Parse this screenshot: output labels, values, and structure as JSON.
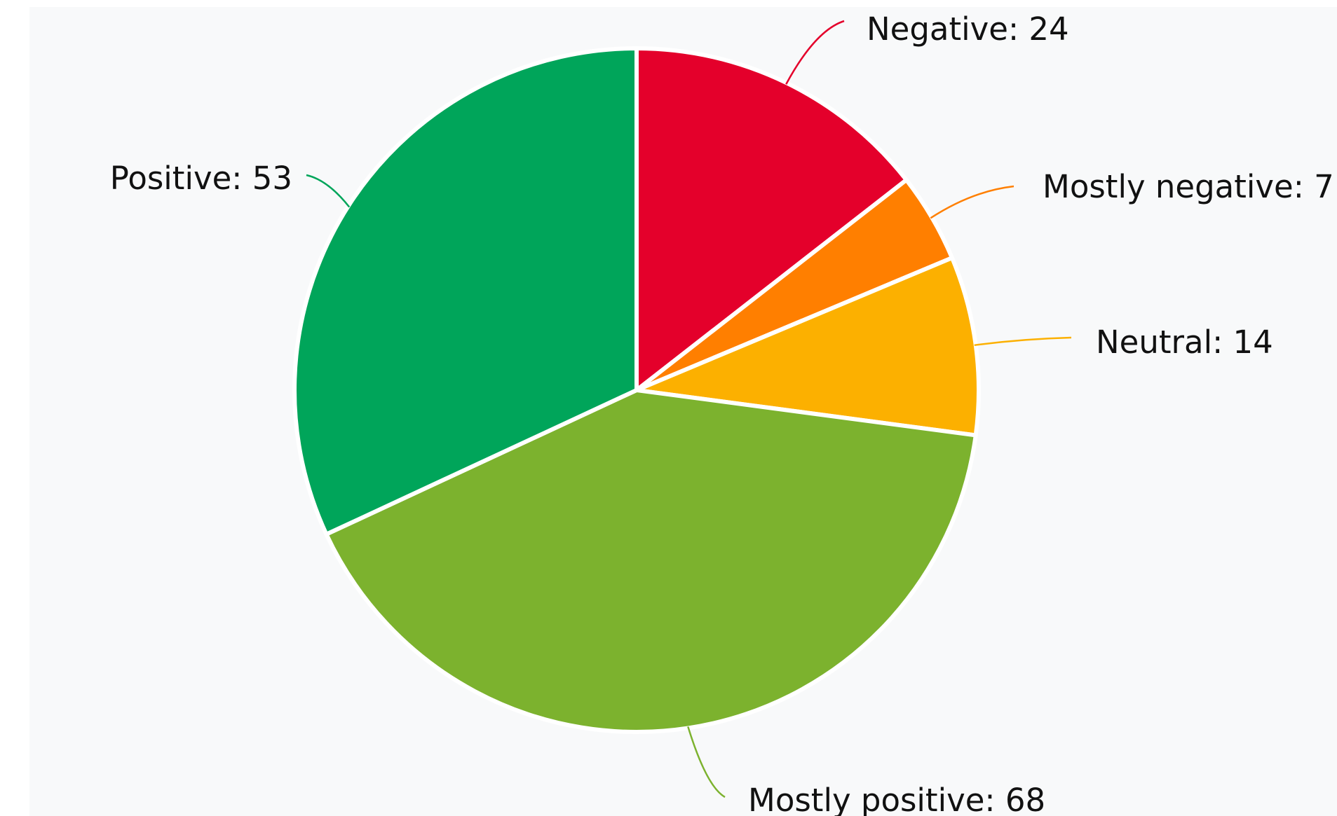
{
  "chart_data": {
    "type": "pie",
    "slices": [
      {
        "name": "Negative",
        "value": 24,
        "color": "#e4002b",
        "label": "Negative: 24"
      },
      {
        "name": "Mostly negative",
        "value": 7,
        "color": "#ff7f00",
        "label": "Mostly negative: 7"
      },
      {
        "name": "Neutral",
        "value": 14,
        "color": "#fcb000",
        "label": "Neutral: 14"
      },
      {
        "name": "Mostly positive",
        "value": 68,
        "color": "#7cb22e",
        "label": "Mostly positive: 68"
      },
      {
        "name": "Positive",
        "value": 53,
        "color": "#00a55a",
        "label": "Positive: 53"
      }
    ],
    "start_angle": "12 o'clock",
    "direction": "clockwise",
    "legend": "none",
    "data_labels": "outside-with-connectors",
    "background": "#f8f9fa"
  }
}
